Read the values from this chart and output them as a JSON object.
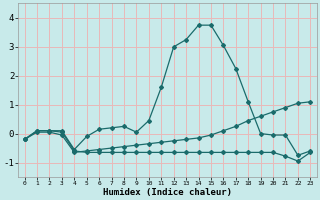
{
  "xlabel": "Humidex (Indice chaleur)",
  "bg_color": "#c8eaea",
  "grid_color": "#e8b8b8",
  "line_color": "#1a6b6b",
  "xlim": [
    -0.5,
    23.5
  ],
  "ylim": [
    -1.5,
    4.5
  ],
  "xticks": [
    0,
    1,
    2,
    3,
    4,
    5,
    6,
    7,
    8,
    9,
    10,
    11,
    12,
    13,
    14,
    15,
    16,
    17,
    18,
    19,
    20,
    21,
    22,
    23
  ],
  "yticks": [
    -1,
    0,
    1,
    2,
    3,
    4
  ],
  "line1_x": [
    0,
    1,
    2,
    3,
    4,
    5,
    6,
    7,
    8,
    9,
    10,
    11,
    12,
    13,
    14,
    15,
    16,
    17,
    18,
    19,
    20,
    21,
    22,
    23
  ],
  "line1_y": [
    -0.2,
    0.1,
    0.1,
    0.1,
    -0.55,
    -0.1,
    0.15,
    0.2,
    0.25,
    0.05,
    0.45,
    1.6,
    3.0,
    3.25,
    3.75,
    3.75,
    3.05,
    2.25,
    1.1,
    0.0,
    -0.05,
    -0.05,
    -0.75,
    -0.6
  ],
  "line2_x": [
    0,
    1,
    2,
    3,
    4,
    5,
    6,
    7,
    8,
    9,
    10,
    11,
    12,
    13,
    14,
    15,
    16,
    17,
    18,
    19,
    20,
    21,
    22,
    23
  ],
  "line2_y": [
    -0.2,
    0.05,
    0.05,
    -0.05,
    -0.65,
    -0.6,
    -0.55,
    -0.5,
    -0.45,
    -0.4,
    -0.35,
    -0.3,
    -0.25,
    -0.2,
    -0.15,
    -0.05,
    0.1,
    0.25,
    0.45,
    0.6,
    0.75,
    0.9,
    1.05,
    1.1
  ],
  "line3_x": [
    0,
    1,
    2,
    3,
    4,
    5,
    6,
    7,
    8,
    9,
    10,
    11,
    12,
    13,
    14,
    15,
    16,
    17,
    18,
    19,
    20,
    21,
    22,
    23
  ],
  "line3_y": [
    -0.2,
    0.1,
    0.1,
    0.05,
    -0.6,
    -0.65,
    -0.65,
    -0.65,
    -0.65,
    -0.65,
    -0.65,
    -0.65,
    -0.65,
    -0.65,
    -0.65,
    -0.65,
    -0.65,
    -0.65,
    -0.65,
    -0.65,
    -0.65,
    -0.78,
    -0.95,
    -0.65
  ]
}
